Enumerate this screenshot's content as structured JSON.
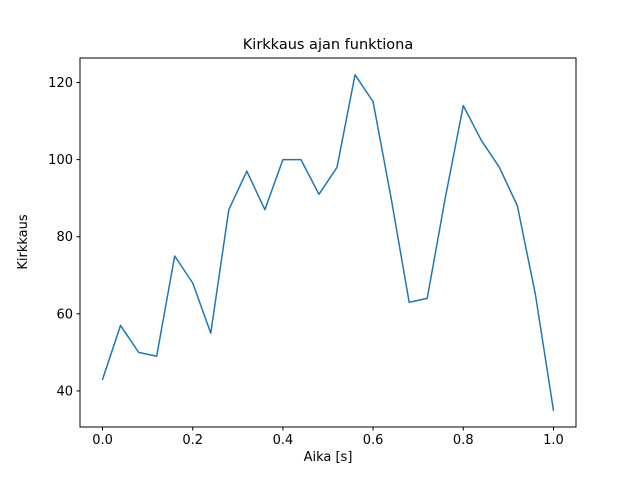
{
  "chart_data": {
    "type": "line",
    "title": "Kirkkaus ajan funktiona",
    "xlabel": "Aika [s]",
    "ylabel": "Kirkkaus",
    "x": [
      0.0,
      0.04,
      0.08,
      0.12,
      0.16,
      0.2,
      0.24,
      0.28,
      0.32,
      0.36,
      0.4,
      0.44,
      0.48,
      0.52,
      0.56,
      0.6,
      0.64,
      0.68,
      0.72,
      0.76,
      0.8,
      0.84,
      0.88,
      0.92,
      0.96,
      1.0
    ],
    "y": [
      43,
      57,
      50,
      49,
      75,
      68,
      55,
      87,
      97,
      87,
      100,
      100,
      91,
      98,
      122,
      115,
      90,
      63,
      64,
      90,
      114,
      105,
      98,
      88,
      65,
      35
    ],
    "xticks": [
      0.0,
      0.2,
      0.4,
      0.6,
      0.8,
      1.0
    ],
    "yticks": [
      40,
      60,
      80,
      100,
      120
    ],
    "xlim": [
      -0.05,
      1.05
    ],
    "ylim": [
      30.65,
      126.35
    ],
    "line_color": "#1f77b4",
    "axis_color": "#000000",
    "background": "#ffffff",
    "grid": false,
    "legend": "none"
  }
}
